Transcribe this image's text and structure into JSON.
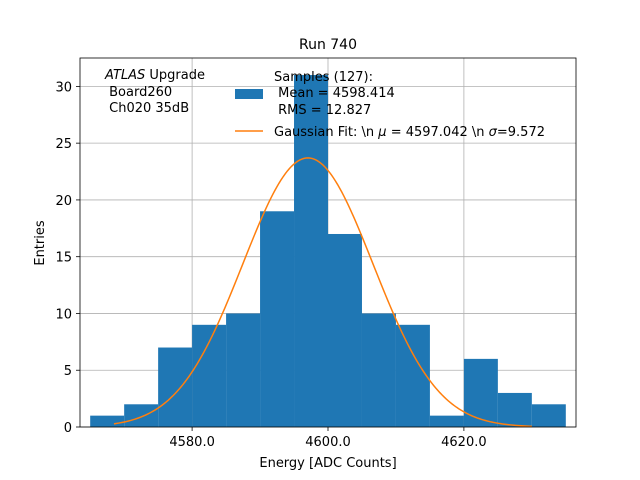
{
  "chart_data": {
    "type": "bar",
    "title": "Run 740",
    "xlabel": "Energy [ADC Counts]",
    "ylabel": "Entries",
    "xlim": [
      4563.5,
      4636.5
    ],
    "ylim": [
      0,
      32.5
    ],
    "grid": true,
    "legend_position": "top-right",
    "x_ticks": [
      {
        "value": 4580,
        "label": "4580.0"
      },
      {
        "value": 4600,
        "label": "4600.0"
      },
      {
        "value": 4620,
        "label": "4620.0"
      }
    ],
    "y_ticks": [
      {
        "value": 0,
        "label": "0"
      },
      {
        "value": 5,
        "label": "5"
      },
      {
        "value": 10,
        "label": "10"
      },
      {
        "value": 15,
        "label": "15"
      },
      {
        "value": 20,
        "label": "20"
      },
      {
        "value": 25,
        "label": "25"
      },
      {
        "value": 30,
        "label": "30"
      }
    ],
    "bin_edges": [
      4565,
      4570,
      4575,
      4580,
      4585,
      4590,
      4595,
      4600,
      4605,
      4610,
      4615,
      4620,
      4625,
      4630,
      4635
    ],
    "bin_counts": [
      1,
      2,
      7,
      9,
      10,
      19,
      31,
      17,
      10,
      9,
      1,
      6,
      3,
      2
    ],
    "histogram_color": "#1f77b4",
    "fit": {
      "mu": 4597.042,
      "sigma": 9.572,
      "peak": 23.7,
      "x_range": [
        4568.5,
        4630.0
      ],
      "color": "#ff7f0e"
    },
    "annotation": {
      "italic": "ATLAS",
      "line1_rest": " Upgrade",
      "line2": " Board260",
      "line3": " Ch020 35dB"
    },
    "legend": {
      "histogram_lines": [
        "Samples (127):",
        " Mean = 4598.414",
        " RMS = 12.827"
      ],
      "fit_prefix": "Gaussian Fit: \\n ",
      "fit_mu_symbol": "μ",
      "fit_mu_rest": " = 4597.042 \\n ",
      "fit_sigma_symbol": "σ",
      "fit_sigma_rest": "=9.572"
    }
  }
}
